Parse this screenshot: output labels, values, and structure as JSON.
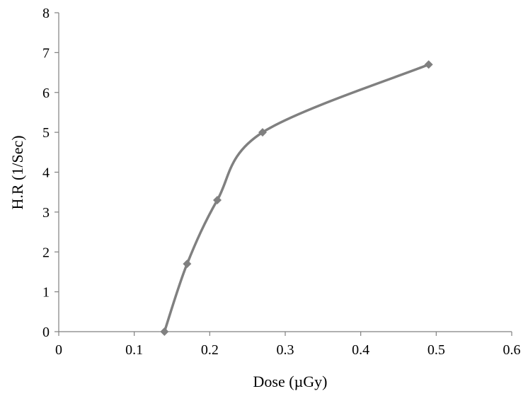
{
  "chart_data": {
    "type": "line",
    "title": "",
    "xlabel": "Dose (µGy)",
    "ylabel": "H.R (1/Sec)",
    "xlim": [
      0,
      0.6
    ],
    "ylim": [
      0,
      8
    ],
    "x_ticks": [
      0,
      0.1,
      0.2,
      0.3,
      0.4,
      0.5,
      0.6
    ],
    "y_ticks": [
      0,
      1,
      2,
      3,
      4,
      5,
      6,
      7,
      8
    ],
    "x_tick_labels": [
      "0",
      "0.1",
      "0.2",
      "0.3",
      "0.4",
      "0.5",
      "0.6"
    ],
    "y_tick_labels": [
      "0",
      "1",
      "2",
      "3",
      "4",
      "5",
      "6",
      "7",
      "8"
    ],
    "grid": false,
    "smooth": true,
    "marker": "diamond",
    "series": [
      {
        "x": [
          0.14,
          0.17,
          0.21,
          0.27,
          0.49
        ],
        "y": [
          0,
          1.7,
          3.3,
          5.0,
          6.7
        ],
        "color": "#808080"
      }
    ]
  }
}
